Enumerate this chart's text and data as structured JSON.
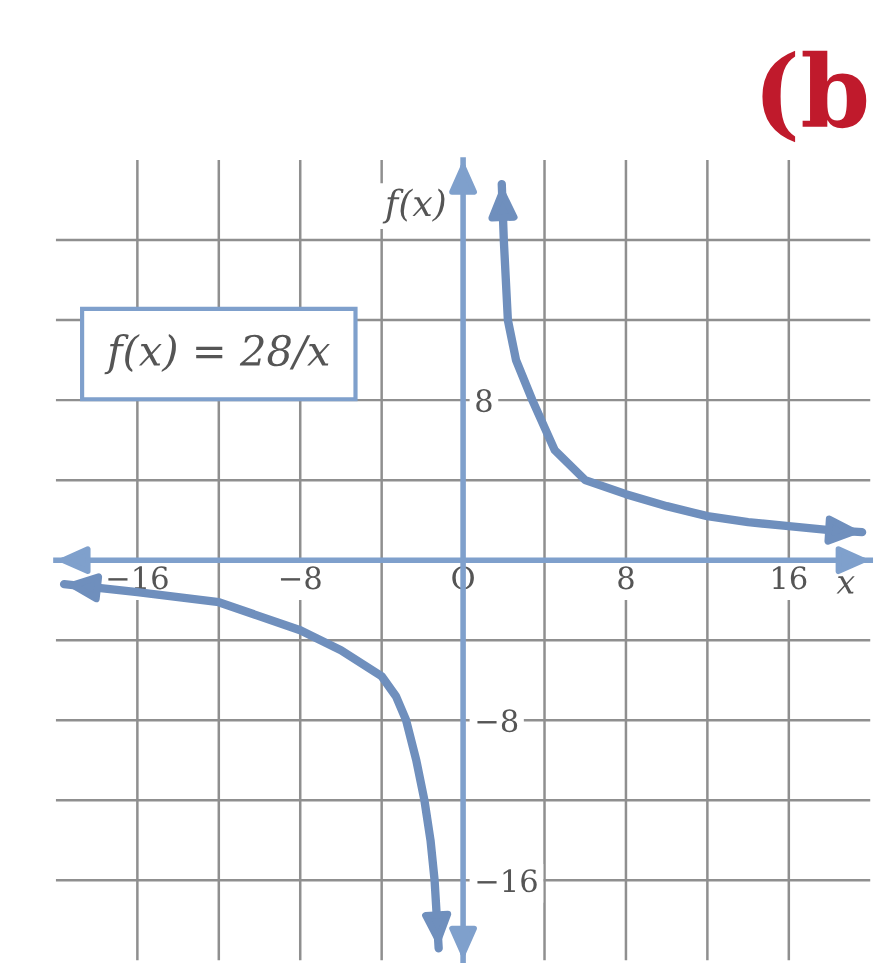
{
  "chart_data": {
    "type": "line",
    "title": "(b",
    "xlabel": "x",
    "ylabel": "f(x)",
    "annotations": [
      "f(x) = 28/x"
    ],
    "series": [
      {
        "color": "#6f8fbd",
        "x": [
          1.9,
          2.0,
          2.2,
          2.6,
          3.4,
          4.5,
          6,
          8,
          10,
          12,
          14,
          16,
          18,
          19.6
        ],
        "values": [
          18.8,
          16,
          12,
          10,
          8,
          5.5,
          4,
          3.3,
          2.7,
          2.2,
          1.9,
          1.7,
          1.5,
          1.4
        ]
      },
      {
        "color": "#6f8fbd",
        "x": [
          -19.6,
          -16,
          -12,
          -8,
          -6,
          -4,
          -3.3,
          -2.8,
          -2.3,
          -1.9,
          -1.6,
          -1.4,
          -1.2
        ],
        "values": [
          -1.2,
          -1.6,
          -2.1,
          -3.5,
          -4.5,
          -5.8,
          -6.8,
          -8,
          -10,
          -12,
          -14,
          -16,
          -19.4
        ]
      }
    ],
    "xlim": [
      -20,
      20
    ],
    "ylim": [
      -20,
      20
    ],
    "xticks": [
      {
        "value": -16,
        "label": "−16"
      },
      {
        "value": -12,
        "label": null
      },
      {
        "value": -8,
        "label": "−8"
      },
      {
        "value": -4,
        "label": null
      },
      {
        "value": 0,
        "label": "O"
      },
      {
        "value": 4,
        "label": null
      },
      8,
      {
        "value": 12,
        "label": null
      },
      16
    ],
    "yticks": [
      {
        "value": -16,
        "label": "−16"
      },
      {
        "value": -12,
        "label": null
      },
      {
        "value": -8,
        "label": "−8"
      },
      {
        "value": -4,
        "label": null
      },
      {
        "value": 0,
        "label": null
      },
      {
        "value": 4,
        "label": null
      },
      8,
      {
        "value": 12,
        "label": null
      },
      {
        "value": 16,
        "label": null
      }
    ],
    "grid": true
  }
}
